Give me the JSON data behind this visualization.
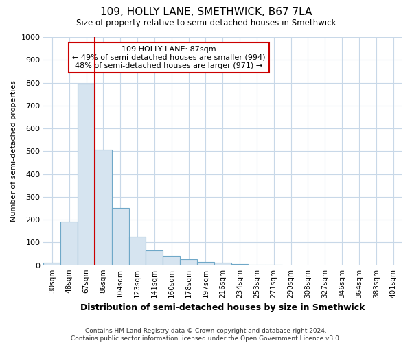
{
  "title": "109, HOLLY LANE, SMETHWICK, B67 7LA",
  "subtitle": "Size of property relative to semi-detached houses in Smethwick",
  "xlabel": "Distribution of semi-detached houses by size in Smethwick",
  "ylabel": "Number of semi-detached properties",
  "categories": [
    "30sqm",
    "48sqm",
    "67sqm",
    "86sqm",
    "104sqm",
    "123sqm",
    "141sqm",
    "160sqm",
    "178sqm",
    "197sqm",
    "216sqm",
    "234sqm",
    "253sqm",
    "271sqm",
    "290sqm",
    "308sqm",
    "327sqm",
    "346sqm",
    "364sqm",
    "383sqm",
    "401sqm"
  ],
  "values": [
    10,
    192,
    795,
    507,
    251,
    125,
    64,
    41,
    27,
    15,
    10,
    5,
    2,
    1,
    0,
    0,
    0,
    0,
    0,
    0,
    0
  ],
  "bar_color": "#d6e4f0",
  "bar_edge_color": "#6fa8c8",
  "marker_line_color": "#cc0000",
  "annotation_text": "109 HOLLY LANE: 87sqm\n← 49% of semi-detached houses are smaller (994)\n48% of semi-detached houses are larger (971) →",
  "annotation_box_color": "#ffffff",
  "annotation_box_edge": "#cc0000",
  "ylim": [
    0,
    1000
  ],
  "yticks": [
    0,
    100,
    200,
    300,
    400,
    500,
    600,
    700,
    800,
    900,
    1000
  ],
  "bg_color": "#ffffff",
  "plot_bg_color": "#ffffff",
  "grid_color": "#c8d8e8",
  "footer": "Contains HM Land Registry data © Crown copyright and database right 2024.\nContains public sector information licensed under the Open Government Licence v3.0."
}
